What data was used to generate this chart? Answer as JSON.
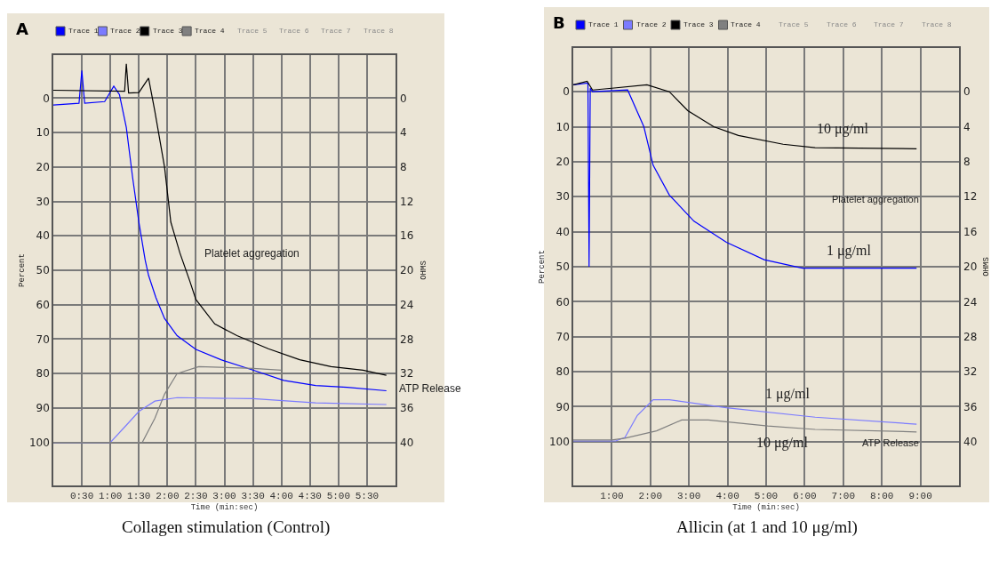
{
  "chart_data": [
    {
      "type": "line",
      "xlabel": "Time (min:sec)",
      "ylabel": "Percent",
      "y2label": "OHMS",
      "legend": "top left",
      "grid": true,
      "line_style": "solid",
      "marker": "none",
      "xlim": [
        0,
        6
      ],
      "xticks": [
        {
          "value": 0.5,
          "label": "0:30"
        },
        {
          "value": 1,
          "label": "1:00"
        },
        {
          "value": 1.5,
          "label": "1:30"
        },
        {
          "value": 2,
          "label": "2:00"
        },
        {
          "value": 2.5,
          "label": "2:30"
        },
        {
          "value": 3,
          "label": "3:00"
        },
        {
          "value": 3.5,
          "label": "3:30"
        },
        {
          "value": 4,
          "label": "4:00"
        },
        {
          "value": 4.5,
          "label": "4:30"
        },
        {
          "value": 5,
          "label": "5:00"
        },
        {
          "value": 5.5,
          "label": "5:30"
        }
      ],
      "ylim": [
        112.5,
        -12.5
      ],
      "yticks": [
        0,
        10,
        20,
        30,
        40,
        50,
        60,
        70,
        80,
        90,
        100
      ],
      "y2lim": [
        45,
        -5
      ],
      "y2ticks": [
        0,
        4,
        8,
        12,
        16,
        20,
        24,
        28,
        32,
        36,
        40
      ],
      "series": [
        {
          "name": "Trace 1",
          "color": "#0000ff",
          "x": [
            0,
            0.45,
            0.5,
            0.55,
            0.9,
            1.06,
            1.16,
            1.28,
            1.39,
            1.5,
            1.61,
            1.67,
            1.8,
            1.95,
            2.17,
            2.5,
            2.94,
            3.5,
            4.04,
            4.6,
            5.15,
            5.84
          ],
          "values": [
            2,
            1.5,
            -8,
            1.5,
            1,
            -3.5,
            -1,
            8.5,
            23,
            36,
            47,
            51.5,
            58,
            64,
            69,
            73,
            76,
            79,
            82,
            83.5,
            84,
            85
          ]
        },
        {
          "name": "Trace 2",
          "color": "#7b7bff",
          "x": [
            0,
            1.0,
            1.28,
            1.5,
            1.78,
            2.17,
            3.5,
            4.6,
            5.84
          ],
          "values": [
            100,
            100,
            95,
            91,
            88,
            87,
            87.3,
            88.5,
            89
          ]
        },
        {
          "name": "Trace 3",
          "color": "#000000",
          "x": [
            0,
            1.25,
            1.28,
            1.32,
            1.5,
            1.67,
            1.78,
            1.95,
            2.06,
            2.22,
            2.39,
            2.5,
            2.83,
            3.22,
            3.77,
            4.32,
            4.87,
            5.43,
            5.84
          ],
          "values": [
            -2.3,
            -2,
            -10,
            -1.5,
            -1.6,
            -5.8,
            3.8,
            20,
            36,
            45,
            53,
            58.5,
            65.6,
            69,
            72.8,
            76,
            78,
            79,
            80.5
          ]
        },
        {
          "name": "Trace 4",
          "color": "#808080",
          "x": [
            0,
            1.56,
            1.78,
            1.95,
            2.17,
            2.55,
            3.5,
            4.0
          ],
          "values": [
            100,
            100,
            93,
            86,
            80,
            78,
            78.5,
            79
          ]
        }
      ],
      "annotations": [
        "A",
        "Trace 5",
        "Trace 6",
        "Trace 7",
        "Trace 8",
        "ATP Release",
        "Platelet aggregation",
        "Collagen stimulation (Control)"
      ]
    },
    {
      "type": "line",
      "xlabel": "Time (min:sec)",
      "ylabel": "Percent",
      "y2label": "OHMS",
      "legend": "top left",
      "grid": true,
      "line_style": "solid",
      "marker": "none",
      "xlim": [
        0,
        10
      ],
      "xticks": [
        {
          "value": 1,
          "label": "1:00"
        },
        {
          "value": 2,
          "label": "2:00"
        },
        {
          "value": 3,
          "label": "3:00"
        },
        {
          "value": 4,
          "label": "4:00"
        },
        {
          "value": 5,
          "label": "5:00"
        },
        {
          "value": 6,
          "label": "6:00"
        },
        {
          "value": 7,
          "label": "7:00"
        },
        {
          "value": 8,
          "label": "8:00"
        },
        {
          "value": 9,
          "label": "9:00"
        }
      ],
      "ylim": [
        112.5,
        -12.5
      ],
      "yticks": [
        0,
        10,
        20,
        30,
        40,
        50,
        60,
        70,
        80,
        90,
        100
      ],
      "y2lim": [
        45,
        -5
      ],
      "y2ticks": [
        0,
        4,
        8,
        12,
        16,
        20,
        24,
        28,
        32,
        36,
        40
      ],
      "series": [
        {
          "name": "Trace 1",
          "color": "#0000ff",
          "x": [
            0,
            0.38,
            0.41,
            0.44,
            0.5,
            1.41,
            1.83,
            2.07,
            2.49,
            3.13,
            3.97,
            4.95,
            5.94,
            8.9
          ],
          "values": [
            -2,
            -2.5,
            50,
            -1,
            0,
            -0.5,
            10,
            21,
            29.5,
            37,
            43,
            48,
            50.4,
            50.4
          ]
        },
        {
          "name": "Trace 2",
          "color": "#7b7bff",
          "x": [
            0,
            1.1,
            1.34,
            1.66,
            2.07,
            2.49,
            3.97,
            6.27,
            8.9
          ],
          "values": [
            99.8,
            99.8,
            98.8,
            92.5,
            88,
            88,
            90.3,
            93,
            95
          ]
        },
        {
          "name": "Trace 3",
          "color": "#000000",
          "x": [
            0,
            0.36,
            0.5,
            1.0,
            1.91,
            2.49,
            2.97,
            3.64,
            4.28,
            5.44,
            6.27,
            8.9
          ],
          "values": [
            -2,
            -3,
            -0.5,
            -1,
            -2,
            0,
            5.4,
            10,
            12.5,
            15,
            16,
            16.3
          ]
        },
        {
          "name": "Trace 4",
          "color": "#808080",
          "x": [
            0,
            1.0,
            1.34,
            2.16,
            2.81,
            3.5,
            5.04,
            6.27,
            8.9
          ],
          "values": [
            99.5,
            99.5,
            99,
            96.9,
            93.8,
            93.8,
            95.5,
            96.5,
            97.2
          ]
        }
      ],
      "annotations": [
        "B",
        "Trace 5",
        "Trace 6",
        "Trace 7",
        "Trace 8",
        "10 μg/ml",
        "Platelet aggregation",
        "1 μg/ml",
        "1 μg/ml",
        "10 μg/ml",
        "ATP Release",
        "Allicin (at 1 and 10 μg/ml)"
      ]
    }
  ]
}
